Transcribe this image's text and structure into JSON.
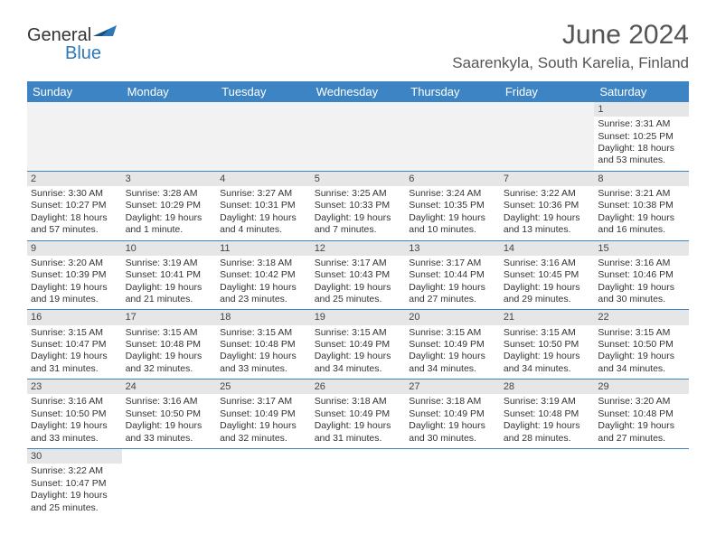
{
  "logo": {
    "word1": "General",
    "word2": "Blue"
  },
  "title": "June 2024",
  "location": "Saarenkyla, South Karelia, Finland",
  "header_bg": "#3d84c5",
  "daynum_bg": "#e6e6e6",
  "text_color": "#333333",
  "font_family": "Arial",
  "day_headers": [
    "Sunday",
    "Monday",
    "Tuesday",
    "Wednesday",
    "Thursday",
    "Friday",
    "Saturday"
  ],
  "weeks": [
    [
      null,
      null,
      null,
      null,
      null,
      null,
      {
        "n": "1",
        "sunrise": "Sunrise: 3:31 AM",
        "sunset": "Sunset: 10:25 PM",
        "daylight": "Daylight: 18 hours and 53 minutes."
      }
    ],
    [
      {
        "n": "2",
        "sunrise": "Sunrise: 3:30 AM",
        "sunset": "Sunset: 10:27 PM",
        "daylight": "Daylight: 18 hours and 57 minutes."
      },
      {
        "n": "3",
        "sunrise": "Sunrise: 3:28 AM",
        "sunset": "Sunset: 10:29 PM",
        "daylight": "Daylight: 19 hours and 1 minute."
      },
      {
        "n": "4",
        "sunrise": "Sunrise: 3:27 AM",
        "sunset": "Sunset: 10:31 PM",
        "daylight": "Daylight: 19 hours and 4 minutes."
      },
      {
        "n": "5",
        "sunrise": "Sunrise: 3:25 AM",
        "sunset": "Sunset: 10:33 PM",
        "daylight": "Daylight: 19 hours and 7 minutes."
      },
      {
        "n": "6",
        "sunrise": "Sunrise: 3:24 AM",
        "sunset": "Sunset: 10:35 PM",
        "daylight": "Daylight: 19 hours and 10 minutes."
      },
      {
        "n": "7",
        "sunrise": "Sunrise: 3:22 AM",
        "sunset": "Sunset: 10:36 PM",
        "daylight": "Daylight: 19 hours and 13 minutes."
      },
      {
        "n": "8",
        "sunrise": "Sunrise: 3:21 AM",
        "sunset": "Sunset: 10:38 PM",
        "daylight": "Daylight: 19 hours and 16 minutes."
      }
    ],
    [
      {
        "n": "9",
        "sunrise": "Sunrise: 3:20 AM",
        "sunset": "Sunset: 10:39 PM",
        "daylight": "Daylight: 19 hours and 19 minutes."
      },
      {
        "n": "10",
        "sunrise": "Sunrise: 3:19 AM",
        "sunset": "Sunset: 10:41 PM",
        "daylight": "Daylight: 19 hours and 21 minutes."
      },
      {
        "n": "11",
        "sunrise": "Sunrise: 3:18 AM",
        "sunset": "Sunset: 10:42 PM",
        "daylight": "Daylight: 19 hours and 23 minutes."
      },
      {
        "n": "12",
        "sunrise": "Sunrise: 3:17 AM",
        "sunset": "Sunset: 10:43 PM",
        "daylight": "Daylight: 19 hours and 25 minutes."
      },
      {
        "n": "13",
        "sunrise": "Sunrise: 3:17 AM",
        "sunset": "Sunset: 10:44 PM",
        "daylight": "Daylight: 19 hours and 27 minutes."
      },
      {
        "n": "14",
        "sunrise": "Sunrise: 3:16 AM",
        "sunset": "Sunset: 10:45 PM",
        "daylight": "Daylight: 19 hours and 29 minutes."
      },
      {
        "n": "15",
        "sunrise": "Sunrise: 3:16 AM",
        "sunset": "Sunset: 10:46 PM",
        "daylight": "Daylight: 19 hours and 30 minutes."
      }
    ],
    [
      {
        "n": "16",
        "sunrise": "Sunrise: 3:15 AM",
        "sunset": "Sunset: 10:47 PM",
        "daylight": "Daylight: 19 hours and 31 minutes."
      },
      {
        "n": "17",
        "sunrise": "Sunrise: 3:15 AM",
        "sunset": "Sunset: 10:48 PM",
        "daylight": "Daylight: 19 hours and 32 minutes."
      },
      {
        "n": "18",
        "sunrise": "Sunrise: 3:15 AM",
        "sunset": "Sunset: 10:48 PM",
        "daylight": "Daylight: 19 hours and 33 minutes."
      },
      {
        "n": "19",
        "sunrise": "Sunrise: 3:15 AM",
        "sunset": "Sunset: 10:49 PM",
        "daylight": "Daylight: 19 hours and 34 minutes."
      },
      {
        "n": "20",
        "sunrise": "Sunrise: 3:15 AM",
        "sunset": "Sunset: 10:49 PM",
        "daylight": "Daylight: 19 hours and 34 minutes."
      },
      {
        "n": "21",
        "sunrise": "Sunrise: 3:15 AM",
        "sunset": "Sunset: 10:50 PM",
        "daylight": "Daylight: 19 hours and 34 minutes."
      },
      {
        "n": "22",
        "sunrise": "Sunrise: 3:15 AM",
        "sunset": "Sunset: 10:50 PM",
        "daylight": "Daylight: 19 hours and 34 minutes."
      }
    ],
    [
      {
        "n": "23",
        "sunrise": "Sunrise: 3:16 AM",
        "sunset": "Sunset: 10:50 PM",
        "daylight": "Daylight: 19 hours and 33 minutes."
      },
      {
        "n": "24",
        "sunrise": "Sunrise: 3:16 AM",
        "sunset": "Sunset: 10:50 PM",
        "daylight": "Daylight: 19 hours and 33 minutes."
      },
      {
        "n": "25",
        "sunrise": "Sunrise: 3:17 AM",
        "sunset": "Sunset: 10:49 PM",
        "daylight": "Daylight: 19 hours and 32 minutes."
      },
      {
        "n": "26",
        "sunrise": "Sunrise: 3:18 AM",
        "sunset": "Sunset: 10:49 PM",
        "daylight": "Daylight: 19 hours and 31 minutes."
      },
      {
        "n": "27",
        "sunrise": "Sunrise: 3:18 AM",
        "sunset": "Sunset: 10:49 PM",
        "daylight": "Daylight: 19 hours and 30 minutes."
      },
      {
        "n": "28",
        "sunrise": "Sunrise: 3:19 AM",
        "sunset": "Sunset: 10:48 PM",
        "daylight": "Daylight: 19 hours and 28 minutes."
      },
      {
        "n": "29",
        "sunrise": "Sunrise: 3:20 AM",
        "sunset": "Sunset: 10:48 PM",
        "daylight": "Daylight: 19 hours and 27 minutes."
      }
    ],
    [
      {
        "n": "30",
        "sunrise": "Sunrise: 3:22 AM",
        "sunset": "Sunset: 10:47 PM",
        "daylight": "Daylight: 19 hours and 25 minutes."
      },
      null,
      null,
      null,
      null,
      null,
      null
    ]
  ]
}
